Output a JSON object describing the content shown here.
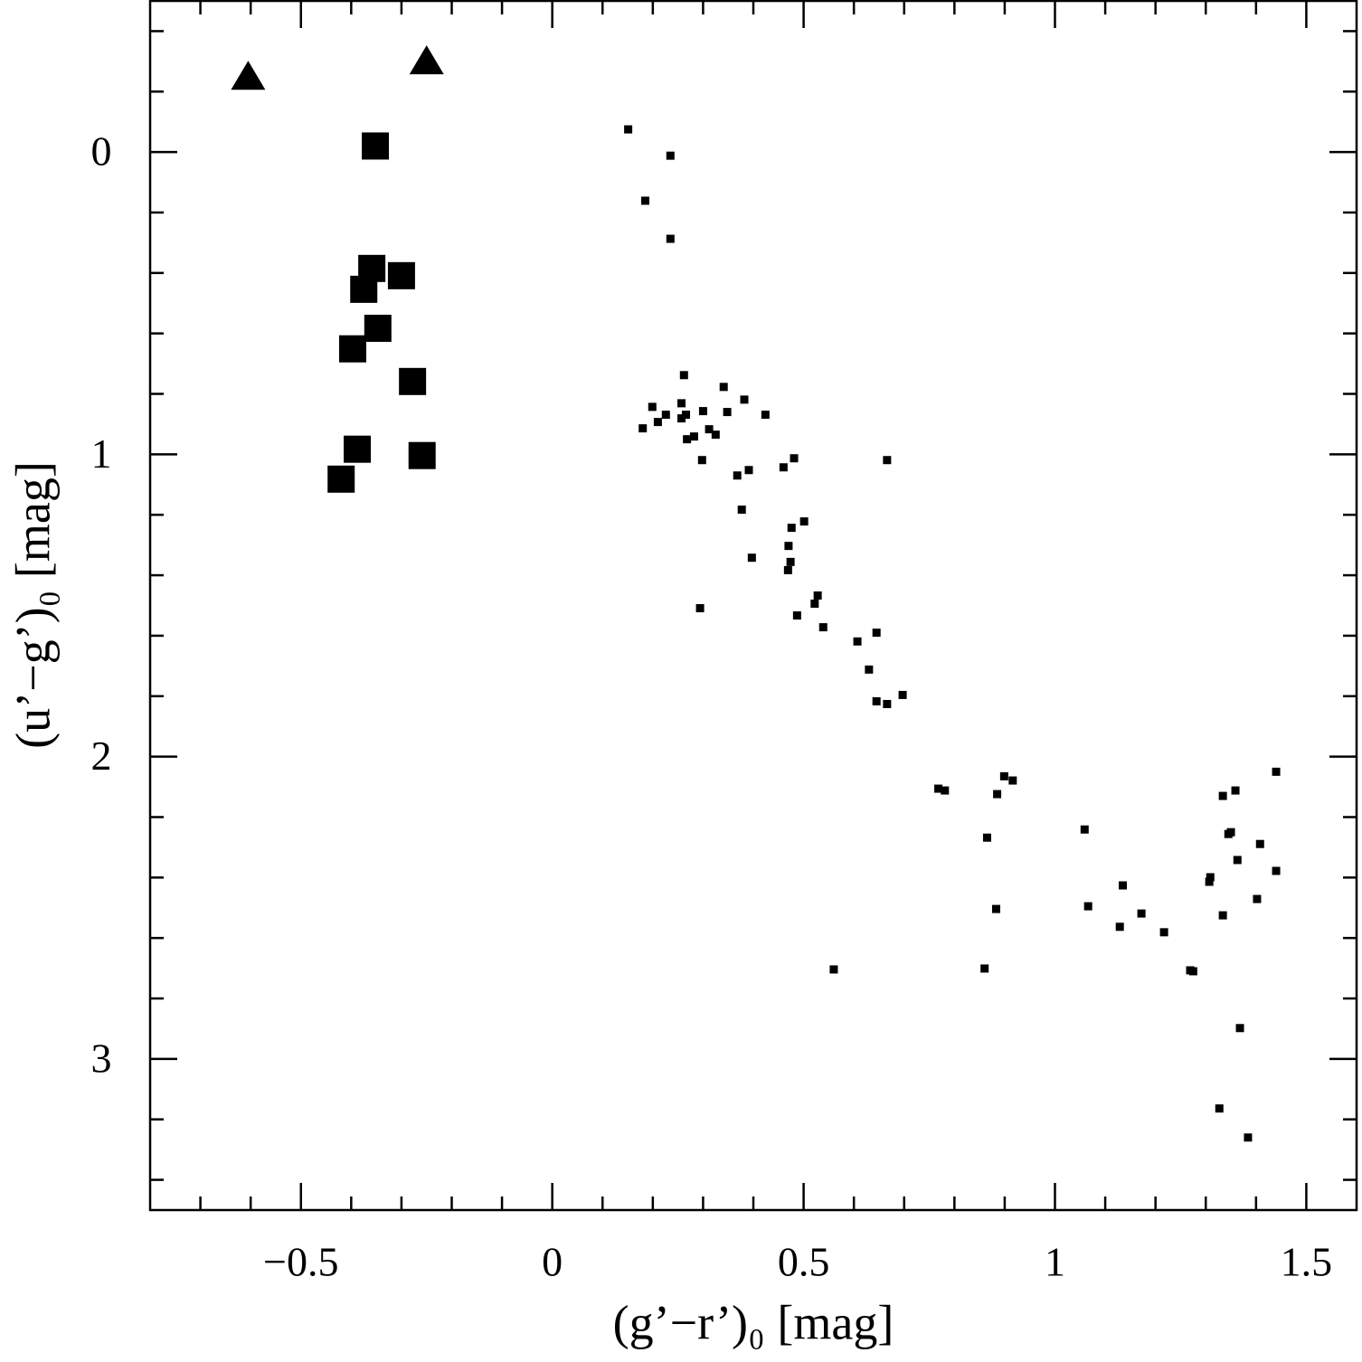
{
  "chart_data": {
    "type": "scatter",
    "xlabel": "(g’−r’)₀ [mag]",
    "ylabel": "(u’−g’)₀ [mag]",
    "xlim": [
      -0.8,
      1.6
    ],
    "ylim": [
      3.5,
      -0.5
    ],
    "xticks": [
      {
        "value": -0.5,
        "label": "−0.5"
      },
      0,
      0.5,
      1,
      1.5
    ],
    "yticks": [
      0,
      1,
      2,
      3
    ],
    "xminorticks": [
      -0.7,
      -0.6,
      -0.4,
      -0.3,
      -0.2,
      -0.1,
      0.1,
      0.2,
      0.3,
      0.4,
      0.6,
      0.7,
      0.8,
      0.9,
      1.1,
      1.2,
      1.3,
      1.4
    ],
    "yminorticks": [
      -0.4,
      -0.2,
      0.2,
      0.4,
      0.6,
      0.8,
      1.2,
      1.4,
      1.6,
      1.8,
      2.2,
      2.4,
      2.6,
      2.8,
      3.2,
      3.4
    ],
    "series": [
      {
        "marker": "triangle",
        "color": "#000000",
        "x": [
          -0.605,
          -0.25
        ],
        "values": [
          -0.248,
          -0.299
        ]
      },
      {
        "marker": "big-square",
        "color": "#000000",
        "x": [
          -0.352,
          -0.359,
          -0.3,
          -0.375,
          -0.347,
          -0.397,
          -0.278,
          -0.388,
          -0.259,
          -0.42
        ],
        "values": [
          -0.02,
          0.385,
          0.409,
          0.454,
          0.583,
          0.651,
          0.759,
          0.983,
          1.004,
          1.082
        ]
      },
      {
        "marker": "small-square",
        "color": "#000000",
        "x": [
          0.151,
          0.235,
          0.185,
          0.235,
          0.262,
          0.341,
          0.382,
          0.199,
          0.257,
          0.226,
          0.18,
          0.21,
          0.257,
          0.266,
          0.3,
          0.348,
          0.424,
          0.268,
          0.282,
          0.312,
          0.325,
          0.298,
          0.481,
          0.666,
          0.46,
          0.368,
          0.391,
          0.377,
          0.501,
          0.476,
          0.47,
          0.397,
          0.474,
          0.469,
          0.528,
          0.522,
          0.294,
          0.487,
          0.539,
          0.607,
          0.645,
          0.63,
          0.645,
          0.666,
          0.697,
          0.768,
          0.781,
          0.899,
          0.916,
          0.885,
          0.865,
          1.059,
          1.345,
          1.35,
          1.359,
          1.334,
          1.44,
          1.408,
          1.363,
          1.44,
          1.309,
          1.307,
          1.135,
          0.883,
          1.066,
          1.402,
          1.172,
          1.129,
          1.217,
          1.334,
          0.56,
          0.86,
          1.269,
          1.275,
          1.368,
          1.327,
          1.384
        ],
        "values": [
          -0.075,
          0.012,
          0.161,
          0.287,
          0.738,
          0.777,
          0.819,
          0.843,
          0.831,
          0.869,
          0.914,
          0.893,
          0.881,
          0.869,
          0.857,
          0.86,
          0.869,
          0.95,
          0.941,
          0.917,
          0.935,
          1.019,
          1.013,
          1.019,
          1.043,
          1.07,
          1.052,
          1.183,
          1.222,
          1.243,
          1.303,
          1.342,
          1.356,
          1.383,
          1.467,
          1.494,
          1.509,
          1.533,
          1.572,
          1.619,
          1.59,
          1.712,
          1.817,
          1.826,
          1.796,
          2.106,
          2.112,
          2.065,
          2.079,
          2.124,
          2.268,
          2.241,
          2.256,
          2.25,
          2.112,
          2.13,
          2.05,
          2.289,
          2.342,
          2.378,
          2.399,
          2.414,
          2.426,
          2.504,
          2.495,
          2.471,
          2.519,
          2.563,
          2.581,
          2.525,
          2.704,
          2.701,
          2.707,
          2.71,
          2.898,
          3.164,
          3.26
        ]
      }
    ]
  }
}
